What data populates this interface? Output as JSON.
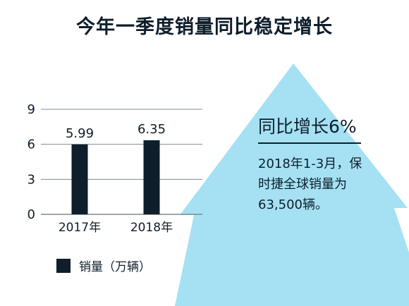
{
  "title": "今年一季度销量同比稳定增长",
  "callout": {
    "heading": "同比增长6%",
    "lines": [
      "2018年1-3月，保",
      "时捷全球销量为",
      "63,500辆。"
    ]
  },
  "legend": {
    "label": "销量（万辆）"
  },
  "colors": {
    "bar": "#0f1e2b",
    "arrow": "#a5e1f3",
    "grid": "#7f8c8d",
    "text": "#0f1e2b"
  },
  "chart_data": {
    "type": "bar",
    "categories": [
      "2017年",
      "2018年"
    ],
    "series": [
      {
        "name": "销量（万辆）",
        "values": [
          5.99,
          6.35
        ]
      }
    ],
    "data_labels": [
      "5.99",
      "6.35"
    ],
    "yticks": [
      0,
      3,
      6,
      9
    ],
    "ylim": [
      0,
      9
    ],
    "grid": true,
    "legend_position": "bottom-left"
  }
}
